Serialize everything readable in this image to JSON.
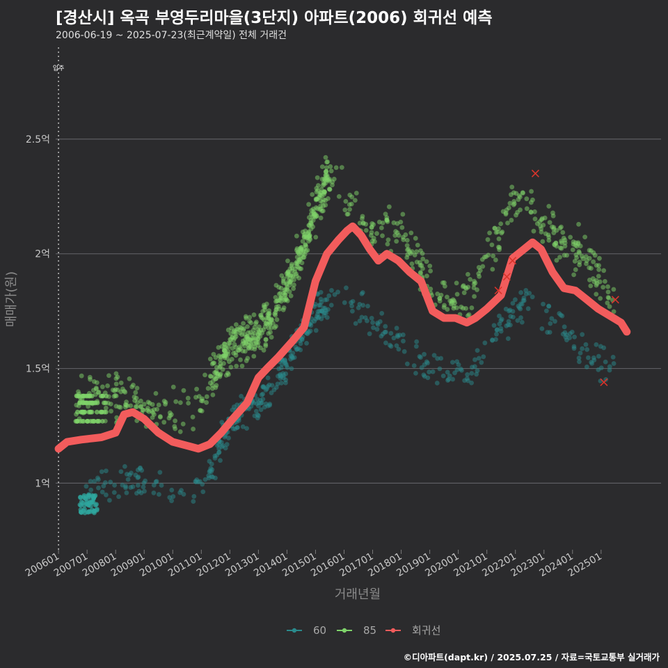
{
  "title": "[경산시] 옥곡 부영두리마을(3단지) 아파트(2006) 회귀선 예측",
  "subtitle": "2006-06-19 ~ 2025-07-23(최근계약일) 전체 거래건",
  "caption": "©디아파트(dapt.kr) / 2025.07.25 / 자료=국토교통부 실거래가",
  "chart_data": {
    "type": "scatter",
    "xlabel": "거래년월",
    "ylabel": "매매가(원)",
    "x_ticks": [
      "200601",
      "200701",
      "200801",
      "200901",
      "201001",
      "201101",
      "201201",
      "201301",
      "201401",
      "201501",
      "201601",
      "201701",
      "201801",
      "201901",
      "202001",
      "202101",
      "202201",
      "202301",
      "202401",
      "202501"
    ],
    "y_ticks": [
      {
        "value": 1.0,
        "label": "1억"
      },
      {
        "value": 1.5,
        "label": "1.5억"
      },
      {
        "value": 2.0,
        "label": "2억"
      },
      {
        "value": 2.5,
        "label": "2.5억"
      }
    ],
    "y_unit": "억",
    "xlim": [
      2005.9,
      2027.1
    ],
    "ylim": [
      0.71,
      2.9
    ],
    "grid": "horizontal",
    "legend_position": "bottom",
    "annotation": {
      "label": "입주",
      "x": 2006.0
    },
    "colors": {
      "s60": "#2a8a8c",
      "s85": "#7fd36a",
      "trend": "#f25c5c",
      "cross": "#d9342b"
    },
    "series": [
      {
        "name": "60",
        "type": "scatter",
        "anchors": [
          [
            2006.9,
            0.92
          ],
          [
            2007.6,
            0.98
          ],
          [
            2008.5,
            1.01
          ],
          [
            2009.5,
            1.0
          ],
          [
            2010.2,
            0.95
          ],
          [
            2010.8,
            0.96
          ],
          [
            2011.3,
            1.05
          ],
          [
            2011.8,
            1.22
          ],
          [
            2012.5,
            1.33
          ],
          [
            2013.4,
            1.38
          ],
          [
            2014.3,
            1.6
          ],
          [
            2015.0,
            1.72
          ],
          [
            2015.8,
            1.85
          ],
          [
            2016.5,
            1.75
          ],
          [
            2017.2,
            1.68
          ],
          [
            2018.0,
            1.6
          ],
          [
            2019.0,
            1.5
          ],
          [
            2020.0,
            1.5
          ],
          [
            2020.5,
            1.48
          ],
          [
            2021.0,
            1.6
          ],
          [
            2021.8,
            1.72
          ],
          [
            2022.5,
            1.8
          ],
          [
            2023.2,
            1.72
          ],
          [
            2024.0,
            1.62
          ],
          [
            2024.8,
            1.52
          ],
          [
            2025.5,
            1.5
          ]
        ],
        "spread": 0.08
      },
      {
        "name": "85",
        "type": "scatter",
        "anchors": [
          [
            2006.6,
            1.36
          ],
          [
            2007.5,
            1.38
          ],
          [
            2008.3,
            1.37
          ],
          [
            2009.3,
            1.32
          ],
          [
            2010.2,
            1.3
          ],
          [
            2010.9,
            1.35
          ],
          [
            2011.6,
            1.5
          ],
          [
            2012.2,
            1.62
          ],
          [
            2012.8,
            1.64
          ],
          [
            2013.5,
            1.72
          ],
          [
            2014.2,
            1.9
          ],
          [
            2014.8,
            2.12
          ],
          [
            2015.4,
            2.32
          ],
          [
            2015.9,
            2.3
          ],
          [
            2016.5,
            2.12
          ],
          [
            2017.2,
            2.1
          ],
          [
            2017.8,
            2.12
          ],
          [
            2018.6,
            1.95
          ],
          [
            2019.4,
            1.82
          ],
          [
            2020.0,
            1.8
          ],
          [
            2020.6,
            1.85
          ],
          [
            2021.1,
            1.98
          ],
          [
            2021.7,
            2.2
          ],
          [
            2022.3,
            2.25
          ],
          [
            2022.9,
            2.1
          ],
          [
            2023.6,
            2.05
          ],
          [
            2024.3,
            2.0
          ],
          [
            2024.9,
            1.9
          ],
          [
            2025.5,
            1.8
          ]
        ],
        "spread": 0.1
      },
      {
        "name": "회귀선",
        "type": "line",
        "points": [
          [
            2006.0,
            1.15
          ],
          [
            2006.3,
            1.18
          ],
          [
            2006.8,
            1.19
          ],
          [
            2007.5,
            1.2
          ],
          [
            2008.0,
            1.22
          ],
          [
            2008.3,
            1.3
          ],
          [
            2008.6,
            1.31
          ],
          [
            2009.0,
            1.28
          ],
          [
            2009.5,
            1.22
          ],
          [
            2010.0,
            1.18
          ],
          [
            2010.6,
            1.16
          ],
          [
            2010.9,
            1.15
          ],
          [
            2011.3,
            1.17
          ],
          [
            2011.7,
            1.22
          ],
          [
            2012.1,
            1.28
          ],
          [
            2012.6,
            1.35
          ],
          [
            2013.0,
            1.46
          ],
          [
            2013.3,
            1.5
          ],
          [
            2013.7,
            1.55
          ],
          [
            2014.2,
            1.62
          ],
          [
            2014.6,
            1.68
          ],
          [
            2015.0,
            1.88
          ],
          [
            2015.4,
            2.0
          ],
          [
            2015.8,
            2.06
          ],
          [
            2016.1,
            2.1
          ],
          [
            2016.3,
            2.12
          ],
          [
            2016.6,
            2.08
          ],
          [
            2016.9,
            2.02
          ],
          [
            2017.2,
            1.97
          ],
          [
            2017.5,
            2.0
          ],
          [
            2017.9,
            1.97
          ],
          [
            2018.3,
            1.92
          ],
          [
            2018.7,
            1.88
          ],
          [
            2019.1,
            1.75
          ],
          [
            2019.5,
            1.72
          ],
          [
            2019.9,
            1.72
          ],
          [
            2020.3,
            1.7
          ],
          [
            2020.6,
            1.72
          ],
          [
            2021.0,
            1.76
          ],
          [
            2021.5,
            1.82
          ],
          [
            2021.9,
            1.98
          ],
          [
            2022.3,
            2.02
          ],
          [
            2022.6,
            2.05
          ],
          [
            2022.9,
            2.02
          ],
          [
            2023.3,
            1.92
          ],
          [
            2023.7,
            1.85
          ],
          [
            2024.1,
            1.84
          ],
          [
            2024.5,
            1.8
          ],
          [
            2024.9,
            1.76
          ],
          [
            2025.3,
            1.73
          ],
          [
            2025.7,
            1.7
          ],
          [
            2025.9,
            1.66
          ]
        ]
      }
    ],
    "highlighted": [
      [
        2021.4,
        1.84
      ],
      [
        2021.7,
        1.9
      ],
      [
        2021.9,
        1.97
      ],
      [
        2022.7,
        2.35
      ],
      [
        2025.1,
        1.44
      ],
      [
        2025.5,
        1.8
      ]
    ]
  }
}
